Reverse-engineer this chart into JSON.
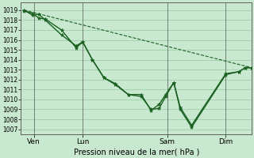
{
  "xlabel": "Pression niveau de la mer( hPa )",
  "bg_color": "#c8e8d0",
  "grid_color": "#98c8a0",
  "line_color": "#1a6020",
  "spine_color": "#606060",
  "ylim": [
    1006.5,
    1019.8
  ],
  "yticks": [
    1007,
    1008,
    1009,
    1010,
    1011,
    1012,
    1013,
    1014,
    1015,
    1016,
    1017,
    1018,
    1019
  ],
  "xtick_labels": [
    "Ven",
    "Lun",
    "Sam",
    "Dim"
  ],
  "xtick_positions": [
    16,
    76,
    180,
    252
  ],
  "xlim": [
    0,
    284
  ],
  "line1_x": [
    4,
    14,
    22,
    30,
    50,
    68,
    76,
    88,
    102,
    116,
    132,
    148,
    160,
    170,
    178,
    188,
    196,
    210,
    252,
    268,
    276,
    284
  ],
  "line1_y": [
    1018.9,
    1018.7,
    1018.2,
    1018.1,
    1017.0,
    1015.2,
    1015.8,
    1014.0,
    1012.2,
    1011.5,
    1010.5,
    1010.3,
    1009.0,
    1009.1,
    1010.3,
    1011.7,
    1009.0,
    1007.2,
    1012.5,
    1012.8,
    1013.2,
    1013.2
  ],
  "line2_x": [
    4,
    14,
    22,
    30,
    50,
    68,
    76,
    88,
    102,
    116,
    132,
    148,
    160,
    170,
    178,
    188,
    196,
    210,
    252,
    268,
    276,
    284
  ],
  "line2_y": [
    1019.0,
    1018.5,
    1018.6,
    1018.0,
    1016.5,
    1015.4,
    1015.8,
    1014.0,
    1012.2,
    1011.6,
    1010.5,
    1010.5,
    1008.9,
    1009.5,
    1010.5,
    1011.7,
    1009.2,
    1007.4,
    1012.6,
    1012.8,
    1013.2,
    1013.2
  ],
  "trend_x": [
    4,
    284
  ],
  "trend_y": [
    1019.0,
    1013.2
  ],
  "vline_positions": [
    16,
    76,
    180,
    252
  ]
}
